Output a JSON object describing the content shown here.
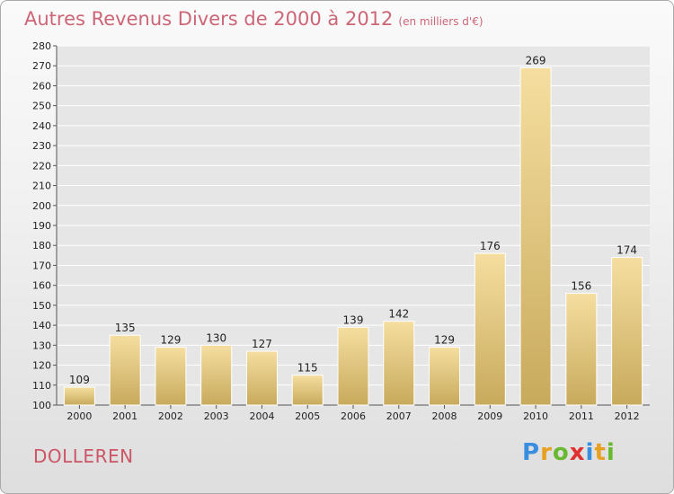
{
  "title": {
    "main": "Autres Revenus Divers de 2000 à 2012",
    "unit": "(en milliers d'€)"
  },
  "commune": "DOLLEREN",
  "logo": {
    "letters": [
      "P",
      "r",
      "o",
      "x",
      "i",
      "t",
      "i"
    ],
    "colors": [
      "#3a8ee0",
      "#e8a020",
      "#68b830",
      "#e03030",
      "#3a8ee0",
      "#e8a020",
      "#68b830"
    ]
  },
  "colors": {
    "bar_light": "#f5dea0",
    "bar_dark": "#c8aa5c",
    "title": "#cc6677"
  },
  "chart_data": {
    "type": "bar",
    "categories": [
      "2000",
      "2001",
      "2002",
      "2003",
      "2004",
      "2005",
      "2006",
      "2007",
      "2008",
      "2009",
      "2010",
      "2011",
      "2012"
    ],
    "values": [
      109,
      135,
      129,
      130,
      127,
      115,
      139,
      142,
      129,
      176,
      269,
      156,
      174
    ],
    "ylim": [
      100,
      280
    ],
    "yticks": [
      100,
      110,
      120,
      130,
      140,
      150,
      160,
      170,
      180,
      190,
      200,
      210,
      220,
      230,
      240,
      250,
      260,
      270,
      280
    ],
    "grid": true
  }
}
